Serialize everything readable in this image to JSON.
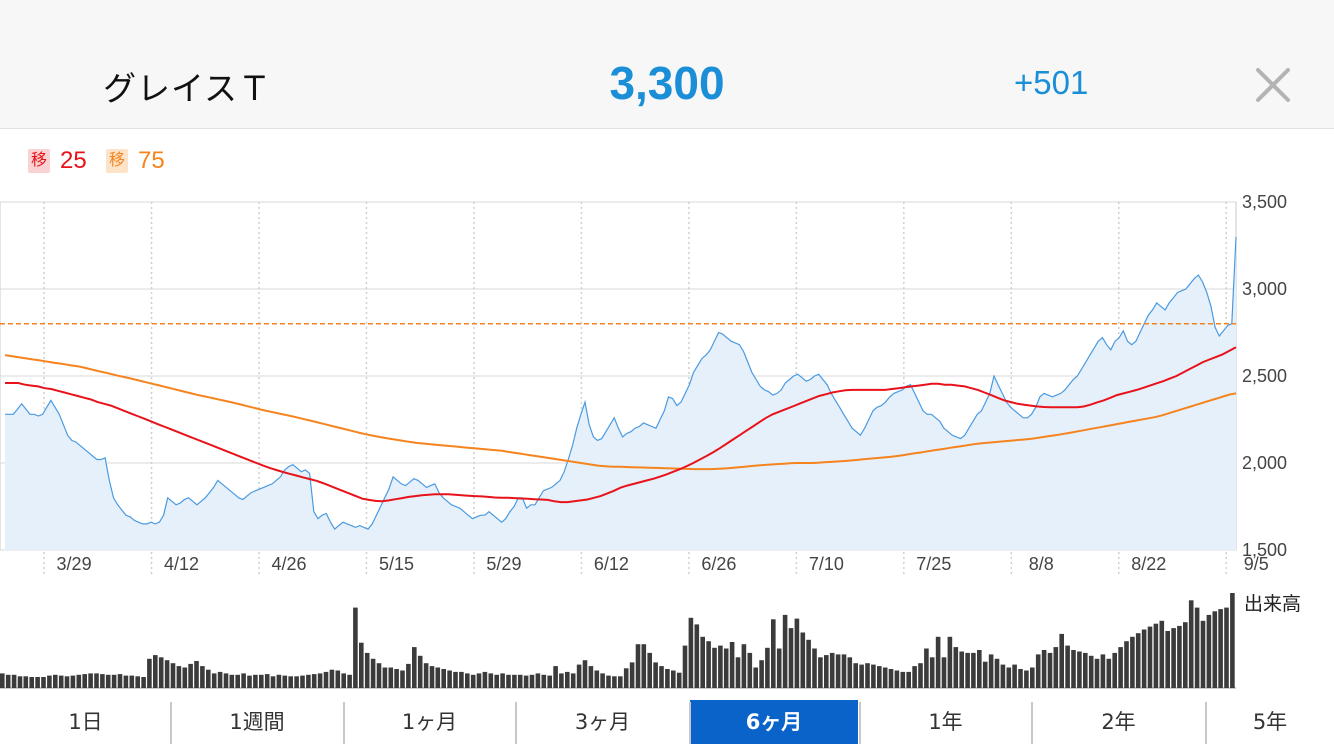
{
  "header": {
    "stock_name": "グレイスＴ",
    "price": "3,300",
    "change": "+501",
    "close_icon": "close-icon"
  },
  "legend": [
    {
      "badge": "移",
      "value": "25",
      "color": "#e8121a",
      "badge_bg": "#f9d3d3"
    },
    {
      "badge": "移",
      "value": "75",
      "color": "#f5841f",
      "badge_bg": "#fde3c7"
    }
  ],
  "volume_label": "出来高",
  "tabs": [
    {
      "label": "1日",
      "active": false
    },
    {
      "label": "1週間",
      "active": false
    },
    {
      "label": "1ヶ月",
      "active": false
    },
    {
      "label": "3ヶ月",
      "active": false
    },
    {
      "label": "6ヶ月",
      "active": true
    },
    {
      "label": "1年",
      "active": false
    },
    {
      "label": "2年",
      "active": false
    },
    {
      "label": "5年",
      "active": false
    }
  ],
  "colors": {
    "accent": "#1a8fd8",
    "ma25": "#e8121a",
    "ma75": "#f5841f",
    "price_line": "#4a9ae0",
    "price_fill": "#e6f0fb",
    "volume_bar": "#3b3b3b",
    "tab_active": "#0a63c9"
  },
  "chart_data": {
    "type": "line",
    "x_tick_labels": [
      "3/29",
      "4/12",
      "4/26",
      "5/15",
      "5/29",
      "6/12",
      "6/26",
      "7/10",
      "7/25",
      "8/8",
      "8/22",
      "9/5"
    ],
    "x_tick_index": [
      4,
      15,
      26,
      37,
      48,
      59,
      70,
      81,
      92,
      103,
      114,
      125
    ],
    "y_ticks": [
      1500,
      2000,
      2500,
      3000,
      3500
    ],
    "y_tick_labels": [
      "1,500",
      "2,000",
      "2,500",
      "3,000",
      "3,500"
    ],
    "ylim": [
      1500,
      3500
    ],
    "grid": true,
    "reference_line": 2800,
    "series": [
      {
        "name": "移25",
        "values": [
          2460,
          2460,
          2460,
          2450,
          2445,
          2440,
          2430,
          2425,
          2415,
          2405,
          2395,
          2385,
          2375,
          2365,
          2350,
          2340,
          2330,
          2315,
          2300,
          2285,
          2270,
          2255,
          2240,
          2225,
          2210,
          2195,
          2180,
          2165,
          2150,
          2135,
          2120,
          2105,
          2090,
          2075,
          2060,
          2045,
          2030,
          2015,
          2000,
          1985,
          1972,
          1960,
          1948,
          1938,
          1928,
          1918,
          1908,
          1898,
          1885,
          1870,
          1855,
          1840,
          1825,
          1810,
          1795,
          1788,
          1782,
          1780,
          1785,
          1792,
          1798,
          1805,
          1810,
          1815,
          1818,
          1820,
          1820,
          1820,
          1818,
          1815,
          1812,
          1810,
          1808,
          1805,
          1802,
          1800,
          1800,
          1798,
          1796,
          1794,
          1792,
          1790,
          1788,
          1780,
          1775,
          1775,
          1780,
          1785,
          1790,
          1800,
          1810,
          1825,
          1840,
          1858,
          1870,
          1880,
          1890,
          1900,
          1910,
          1922,
          1935,
          1950,
          1965,
          1982,
          2000,
          2020,
          2040,
          2062,
          2085,
          2110,
          2135,
          2160,
          2185,
          2210,
          2235,
          2260,
          2280,
          2295,
          2310,
          2325,
          2340,
          2355,
          2370,
          2385,
          2395,
          2405,
          2412,
          2418,
          2420,
          2420,
          2420,
          2420,
          2420,
          2420,
          2425,
          2430,
          2435,
          2440,
          2445,
          2450,
          2455,
          2455,
          2450,
          2450,
          2445,
          2440,
          2430,
          2420,
          2405,
          2390,
          2375,
          2360,
          2350,
          2340,
          2335,
          2330,
          2325,
          2322,
          2320,
          2320,
          2320,
          2320,
          2320,
          2325,
          2335,
          2348,
          2360,
          2375,
          2390,
          2400,
          2410,
          2420,
          2432,
          2445,
          2458,
          2470,
          2485,
          2500,
          2520,
          2540,
          2560,
          2580,
          2595,
          2610,
          2625,
          2645,
          2665
        ]
      },
      {
        "name": "移75",
        "values": [
          2620,
          2615,
          2610,
          2605,
          2600,
          2595,
          2590,
          2585,
          2580,
          2575,
          2570,
          2565,
          2560,
          2555,
          2548,
          2540,
          2532,
          2525,
          2518,
          2510,
          2502,
          2495,
          2488,
          2480,
          2472,
          2464,
          2456,
          2448,
          2440,
          2432,
          2424,
          2416,
          2408,
          2400,
          2392,
          2385,
          2378,
          2371,
          2364,
          2357,
          2350,
          2342,
          2334,
          2326,
          2318,
          2310,
          2302,
          2295,
          2288,
          2281,
          2274,
          2267,
          2260,
          2252,
          2244,
          2236,
          2228,
          2220,
          2212,
          2204,
          2196,
          2188,
          2180,
          2172,
          2165,
          2158,
          2152,
          2146,
          2140,
          2135,
          2130,
          2125,
          2120,
          2115,
          2112,
          2109,
          2106,
          2103,
          2100,
          2097,
          2094,
          2091,
          2088,
          2085,
          2082,
          2079,
          2076,
          2073,
          2070,
          2065,
          2060,
          2055,
          2050,
          2045,
          2040,
          2035,
          2030,
          2025,
          2020,
          2015,
          2010,
          2005,
          2000,
          1995,
          1990,
          1985,
          1982,
          1980,
          1979,
          1978,
          1977,
          1976,
          1975,
          1974,
          1973,
          1972,
          1971,
          1970,
          1969,
          1968,
          1967,
          1966,
          1965,
          1965,
          1965,
          1965,
          1966,
          1968,
          1970,
          1973,
          1976,
          1979,
          1982,
          1985,
          1988,
          1990,
          1992,
          1994,
          1996,
          1998,
          2000,
          2000,
          2000,
          2000,
          2002,
          2004,
          2006,
          2008,
          2010,
          2012,
          2015,
          2018,
          2021,
          2024,
          2027,
          2030,
          2033,
          2036,
          2040,
          2045,
          2050,
          2055,
          2060,
          2065,
          2070,
          2075,
          2080,
          2085,
          2090,
          2095,
          2100,
          2105,
          2110,
          2113,
          2116,
          2119,
          2122,
          2125,
          2128,
          2131,
          2134,
          2137,
          2140,
          2145,
          2150,
          2155,
          2160,
          2165,
          2170,
          2176,
          2182,
          2188,
          2194,
          2200,
          2206,
          2212,
          2218,
          2224,
          2230,
          2236,
          2242,
          2248,
          2254,
          2260,
          2266,
          2275,
          2285,
          2295,
          2305,
          2315,
          2325,
          2335,
          2345,
          2355,
          2365,
          2375,
          2385,
          2395,
          2400
        ]
      },
      {
        "name": "price",
        "values": [
          2280,
          2280,
          2280,
          2310,
          2340,
          2310,
          2280,
          2280,
          2270,
          2280,
          2320,
          2360,
          2320,
          2280,
          2220,
          2160,
          2130,
          2120,
          2100,
          2080,
          2060,
          2040,
          2020,
          2020,
          2030,
          1900,
          1800,
          1760,
          1730,
          1700,
          1690,
          1670,
          1660,
          1650,
          1650,
          1660,
          1650,
          1660,
          1700,
          1800,
          1780,
          1760,
          1770,
          1790,
          1800,
          1780,
          1760,
          1780,
          1800,
          1830,
          1860,
          1900,
          1880,
          1860,
          1840,
          1820,
          1800,
          1790,
          1810,
          1830,
          1840,
          1850,
          1860,
          1870,
          1880,
          1900,
          1920,
          1960,
          1980,
          1990,
          1970,
          1950,
          1960,
          1940,
          1720,
          1680,
          1700,
          1710,
          1660,
          1620,
          1640,
          1660,
          1650,
          1640,
          1630,
          1640,
          1630,
          1620,
          1650,
          1700,
          1750,
          1800,
          1850,
          1920,
          1900,
          1880,
          1870,
          1890,
          1910,
          1900,
          1880,
          1860,
          1870,
          1880,
          1830,
          1800,
          1780,
          1760,
          1750,
          1740,
          1720,
          1700,
          1680,
          1690,
          1700,
          1700,
          1720,
          1700,
          1680,
          1660,
          1680,
          1720,
          1750,
          1800,
          1800,
          1740,
          1760,
          1760,
          1800,
          1840,
          1850,
          1860,
          1880,
          1900,
          1950,
          2020,
          2100,
          2200,
          2280,
          2350,
          2220,
          2150,
          2130,
          2140,
          2180,
          2220,
          2260,
          2200,
          2150,
          2170,
          2180,
          2200,
          2210,
          2230,
          2220,
          2210,
          2200,
          2250,
          2300,
          2380,
          2370,
          2330,
          2350,
          2400,
          2450,
          2520,
          2560,
          2600,
          2620,
          2650,
          2700,
          2750,
          2740,
          2720,
          2700,
          2690,
          2680,
          2640,
          2580,
          2520,
          2480,
          2440,
          2420,
          2410,
          2390,
          2400,
          2420,
          2460,
          2480,
          2500,
          2510,
          2490,
          2470,
          2480,
          2500,
          2510,
          2480,
          2450,
          2400,
          2360,
          2320,
          2280,
          2240,
          2200,
          2180,
          2160,
          2200,
          2250,
          2300,
          2320,
          2330,
          2350,
          2380,
          2400,
          2410,
          2420,
          2440,
          2450,
          2400,
          2350,
          2300,
          2280,
          2280,
          2260,
          2240,
          2200,
          2180,
          2160,
          2150,
          2140,
          2160,
          2200,
          2240,
          2280,
          2300,
          2350,
          2400,
          2500,
          2450,
          2400,
          2350,
          2320,
          2300,
          2280,
          2260,
          2260,
          2280,
          2320,
          2380,
          2400,
          2390,
          2380,
          2390,
          2400,
          2420,
          2450,
          2480,
          2500,
          2540,
          2580,
          2620,
          2660,
          2700,
          2720,
          2680,
          2650,
          2700,
          2720,
          2760,
          2700,
          2680,
          2700,
          2750,
          2800,
          2850,
          2880,
          2920,
          2900,
          2880,
          2920,
          2950,
          2980,
          2990,
          3000,
          3030,
          3060,
          3080,
          3040,
          2980,
          2900,
          2780,
          2730,
          2760,
          2790,
          2800,
          3300
        ]
      }
    ],
    "volume": [
      20,
      18,
      18,
      16,
      16,
      15,
      15,
      15,
      17,
      18,
      17,
      16,
      17,
      18,
      19,
      20,
      20,
      19,
      18,
      18,
      19,
      17,
      17,
      16,
      15,
      40,
      45,
      42,
      38,
      34,
      30,
      28,
      33,
      37,
      30,
      25,
      20,
      22,
      20,
      18,
      18,
      20,
      17,
      18,
      18,
      19,
      16,
      18,
      17,
      16,
      16,
      17,
      18,
      19,
      20,
      22,
      25,
      24,
      20,
      18,
      110,
      62,
      48,
      40,
      34,
      28,
      28,
      26,
      24,
      33,
      56,
      44,
      34,
      30,
      28,
      26,
      24,
      22,
      22,
      20,
      18,
      20,
      22,
      20,
      18,
      20,
      18,
      18,
      18,
      17,
      18,
      20,
      18,
      17,
      30,
      20,
      22,
      20,
      32,
      38,
      30,
      24,
      20,
      17,
      16,
      16,
      27,
      35,
      60,
      60,
      48,
      35,
      30,
      26,
      24,
      21,
      58,
      96,
      87,
      70,
      64,
      55,
      58,
      54,
      63,
      42,
      60,
      48,
      28,
      38,
      55,
      94,
      54,
      100,
      82,
      95,
      76,
      66,
      54,
      42,
      45,
      48,
      46,
      46,
      42,
      34,
      32,
      34,
      32,
      30,
      28,
      26,
      24,
      22,
      22,
      30,
      34,
      54,
      42,
      70,
      42,
      70,
      56,
      50,
      48,
      48,
      52,
      36,
      46,
      40,
      32,
      28,
      32,
      26,
      24,
      28,
      46,
      52,
      48,
      56,
      74,
      58,
      52,
      50,
      48,
      44,
      40,
      46,
      40,
      48,
      56,
      64,
      70,
      75,
      80,
      84,
      88,
      92,
      78,
      82,
      85,
      90,
      120,
      110,
      92,
      100,
      105,
      108,
      110,
      130
    ]
  }
}
